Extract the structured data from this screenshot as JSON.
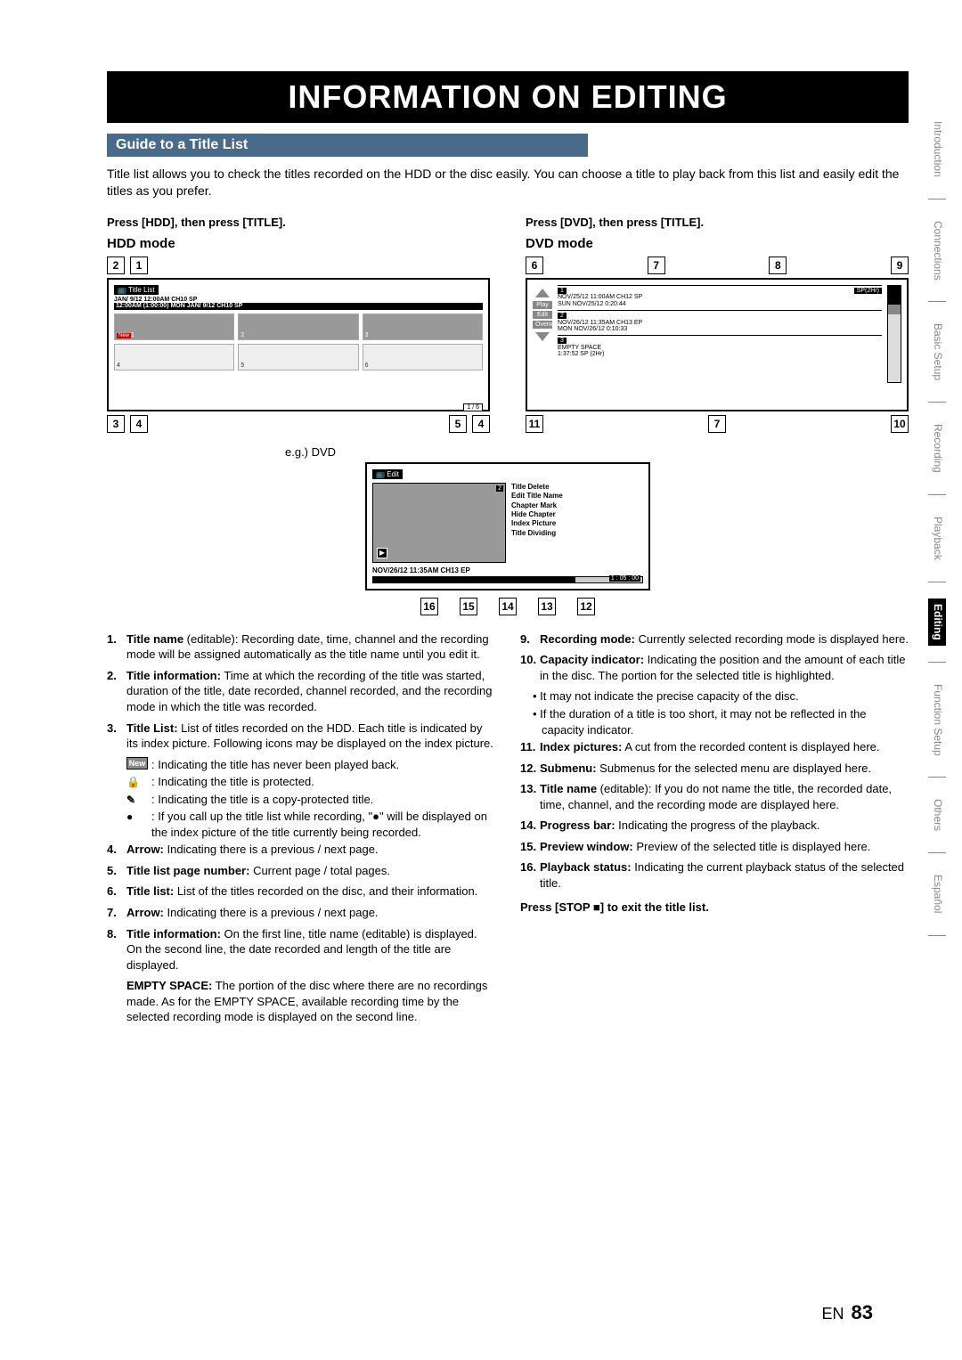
{
  "banner": "INFORMATION ON EDITING",
  "section_title": "Guide to a Title List",
  "intro": "Title list allows you to check the titles recorded on the HDD or the disc easily. You can choose a title to play back from this list and easily edit the titles as you prefer.",
  "hdd": {
    "press": "Press [HDD], then press [TITLE].",
    "mode": "HDD mode",
    "top_callouts": [
      "2",
      "1"
    ],
    "bottom_callouts_left": [
      "3",
      "4"
    ],
    "bottom_callouts_right": [
      "5",
      "4"
    ],
    "frame_header": "Title List",
    "line1": "JAN/ 9/12 12:00AM CH10  SP",
    "line2": "12:00AM (1:00:00)  MON JAN/ 9/12  CH10   SP",
    "new_badge": "New",
    "cells": [
      "1",
      "2",
      "3",
      "4",
      "5",
      "6"
    ],
    "page": "1 / 6"
  },
  "dvd": {
    "press": "Press [DVD], then press [TITLE].",
    "mode": "DVD mode",
    "top_callouts": [
      "6",
      "7",
      "8",
      "9"
    ],
    "bottom_callouts": [
      "11",
      "7",
      "10"
    ],
    "pills": [
      "Play",
      "Edit",
      "Overwrite"
    ],
    "items": [
      {
        "num": "1",
        "sp": "SP(2Hr)",
        "l1": "NOV/25/12 11:00AM CH12 SP",
        "l2": "SUN NOV/25/12   0:20:44"
      },
      {
        "num": "2",
        "sp": "",
        "l1": "NOV/26/12 11:35AM CH13 EP",
        "l2": "MON NOV/26/12   0:10:33"
      },
      {
        "num": "3",
        "sp": "",
        "l1": "EMPTY SPACE",
        "l2": "1:37:52  SP (2Hr)"
      }
    ]
  },
  "eg_label": "e.g.) DVD",
  "edit": {
    "header": "Edit",
    "num": "2",
    "menu": [
      "Title Delete",
      "Edit Title Name",
      "Chapter Mark",
      "Hide Chapter",
      "Index Picture",
      "Title Dividing"
    ],
    "info": "NOV/26/12 11:35AM CH13 EP",
    "time": "1 : 05 : 00",
    "bottom_callouts": [
      "16",
      "15",
      "14",
      "13",
      "12"
    ]
  },
  "items_left": [
    {
      "n": "1.",
      "label": "Title name",
      "ed": " (editable)",
      "rest": ": Recording date, time, channel and the recording mode will be assigned automatically as the title name until you edit it."
    },
    {
      "n": "2.",
      "label": "Title information:",
      "rest": " Time at which the recording of the title was started, duration of the title, date recorded, channel recorded, and the recording mode in which the title was recorded."
    },
    {
      "n": "3.",
      "label": "Title List:",
      "rest": " List of titles recorded on the HDD. Each title is indicated by its index picture. Following icons may be displayed on the index picture."
    }
  ],
  "subicons": [
    {
      "type": "box",
      "text": "New",
      "desc": ": Indicating the title has never been played back."
    },
    {
      "type": "lock",
      "text": "",
      "desc": ": Indicating the title is protected."
    },
    {
      "type": "scribble",
      "text": "",
      "desc": ": Indicating the title is a copy-protected title."
    },
    {
      "type": "dot",
      "text": "",
      "desc": ": If you call up the title list while recording, \"●\" will be displayed on the index picture of the title currently being recorded."
    }
  ],
  "items_left2": [
    {
      "n": "4.",
      "label": "Arrow:",
      "rest": " Indicating there is a previous / next page."
    },
    {
      "n": "5.",
      "label": "Title list page number:",
      "rest": " Current page / total pages."
    },
    {
      "n": "6.",
      "label": "Title list:",
      "rest": " List of the titles recorded on the disc, and their information."
    },
    {
      "n": "7.",
      "label": "Arrow:",
      "rest": " Indicating there is a previous / next page."
    },
    {
      "n": "8.",
      "label": "Title information:",
      "rest": " On the first line, title name (editable) is displayed. On the second line, the date recorded and length of the title are displayed."
    }
  ],
  "empty_space": {
    "label": "EMPTY SPACE:",
    "rest": " The portion of the disc where there are no recordings made. As for the EMPTY SPACE, available recording time by the selected recording mode is displayed on the second line."
  },
  "items_right": [
    {
      "n": "9.",
      "label": "Recording mode:",
      "rest": " Currently selected recording mode is displayed here."
    },
    {
      "n": "10.",
      "label": "Capacity indicator:",
      "rest": " Indicating the position and the amount of each title in the disc. The portion for the selected title is highlighted."
    }
  ],
  "bullets": [
    "It may not indicate the precise capacity of the disc.",
    "If the duration of a title is too short, it may not be reflected in the capacity indicator."
  ],
  "items_right2": [
    {
      "n": "11.",
      "label": "Index pictures:",
      "rest": " A cut from the recorded content is displayed here."
    },
    {
      "n": "12.",
      "label": "Submenu:",
      "rest": " Submenus for the selected menu are displayed here."
    },
    {
      "n": "13.",
      "label": "Title name",
      "ed": " (editable)",
      "rest": ": If you do not name the title, the recorded date, time, channel, and the recording mode are displayed here."
    },
    {
      "n": "14.",
      "label": "Progress bar:",
      "rest": " Indicating the progress of the playback."
    },
    {
      "n": "15.",
      "label": "Preview window:",
      "rest": " Preview of the selected title is displayed here."
    },
    {
      "n": "16.",
      "label": "Playback status:",
      "rest": " Indicating the current playback status of the selected title."
    }
  ],
  "press_stop": "Press [STOP ■] to exit the title list.",
  "tabs": [
    "Introduction",
    "Connections",
    "Basic Setup",
    "Recording",
    "Playback",
    "Editing",
    "Function Setup",
    "Others",
    "Español"
  ],
  "active_tab": "Editing",
  "page_lang": "EN",
  "page_num": "83"
}
